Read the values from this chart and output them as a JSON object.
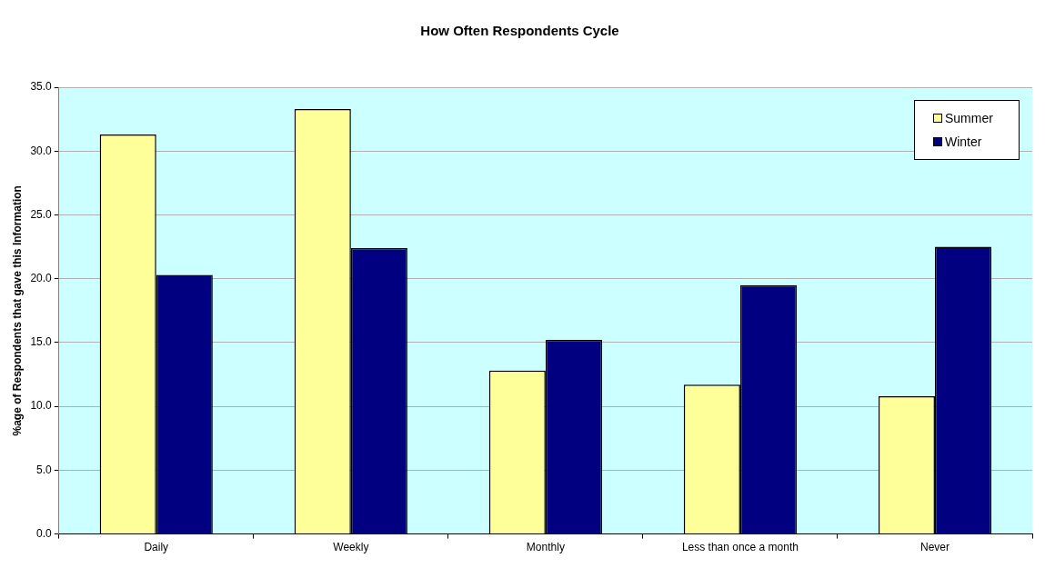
{
  "chart_data": {
    "type": "bar",
    "title": "How Often Respondents Cycle",
    "ylabel": "%age of Respondents that gave this Information",
    "categories": [
      "Daily",
      "Weekly",
      "Monthly",
      "Less than once a month",
      "Never"
    ],
    "series": [
      {
        "name": "Summer",
        "color": "#ffff99",
        "values": [
          31.3,
          33.3,
          12.8,
          11.7,
          10.8
        ]
      },
      {
        "name": "Winter",
        "color": "#000080",
        "values": [
          20.3,
          22.4,
          15.2,
          19.5,
          22.5
        ]
      }
    ],
    "ylim": [
      0,
      35
    ],
    "yticks": [
      {
        "value": 0,
        "label": "0.0"
      },
      {
        "value": 5,
        "label": "5.0"
      },
      {
        "value": 10,
        "label": "10.0"
      },
      {
        "value": 15,
        "label": "15.0"
      },
      {
        "value": 20,
        "label": "20.0"
      },
      {
        "value": 25,
        "label": "25.0"
      },
      {
        "value": 30,
        "label": "30.0"
      },
      {
        "value": 35,
        "label": "35.0"
      }
    ],
    "grid": "y",
    "legend": "top right"
  }
}
